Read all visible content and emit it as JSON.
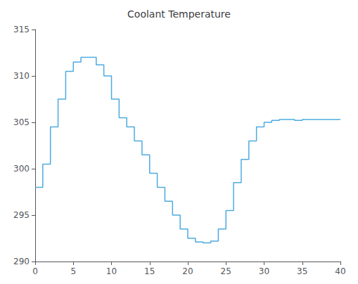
{
  "chart_data": {
    "type": "step",
    "title": "Coolant Temperature",
    "x": [
      0,
      1,
      2,
      3,
      4,
      5,
      6,
      7,
      8,
      9,
      10,
      11,
      12,
      13,
      14,
      15,
      16,
      17,
      18,
      19,
      20,
      21,
      22,
      23,
      24,
      25,
      26,
      27,
      28,
      29,
      30,
      31,
      32,
      33,
      34,
      35,
      36,
      37,
      38,
      39,
      40
    ],
    "values": [
      298.0,
      300.5,
      304.5,
      307.5,
      310.5,
      311.5,
      312.0,
      312.0,
      311.2,
      310.0,
      307.5,
      305.5,
      304.5,
      303.0,
      301.5,
      299.5,
      298.0,
      296.5,
      295.0,
      293.5,
      292.5,
      292.1,
      292.0,
      292.2,
      293.5,
      295.5,
      298.5,
      301.0,
      303.0,
      304.5,
      305.0,
      305.2,
      305.3,
      305.3,
      305.2,
      305.3,
      305.3,
      305.3,
      305.3,
      305.3,
      305.3
    ],
    "color": "#4DAADF",
    "xlim": [
      0,
      40
    ],
    "xticks": [
      0,
      5,
      10,
      15,
      20,
      25,
      30,
      35,
      40
    ],
    "ylim": [
      290,
      315
    ],
    "yticks": [
      290,
      295,
      300,
      305,
      310,
      315
    ],
    "grid": false
  }
}
